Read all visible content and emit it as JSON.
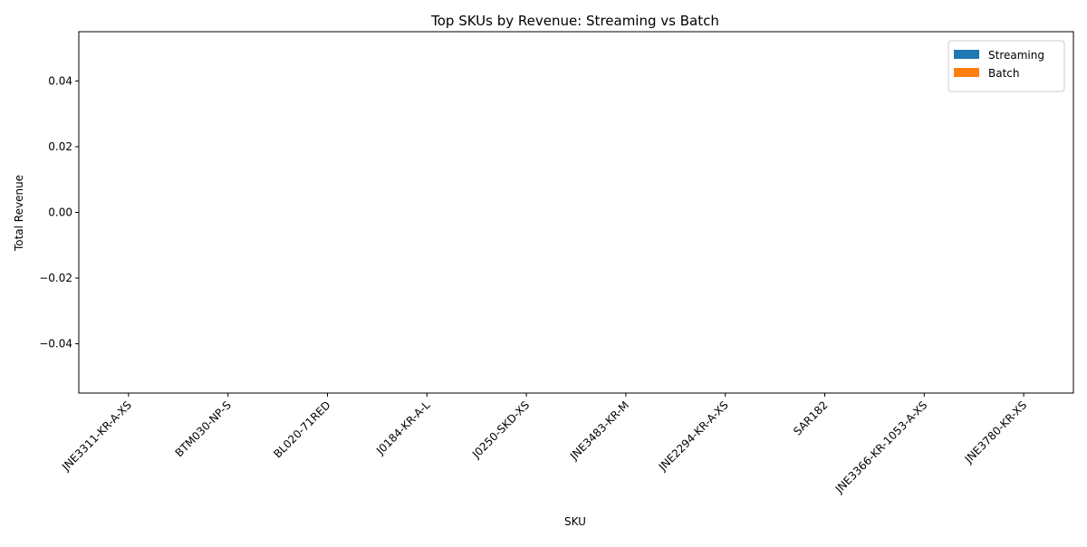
{
  "chart_data": {
    "type": "bar",
    "title": "Top SKUs by Revenue: Streaming vs Batch",
    "xlabel": "SKU",
    "ylabel": "Total Revenue",
    "categories": [
      "JNE3311-KR-A-XS",
      "BTM030-NP-S",
      "BL020-71RED",
      "J0184-KR-A-L",
      "J0250-SKD-XS",
      "JNE3483-KR-M",
      "JNE2294-KR-A-XS",
      "SAR182",
      "JNE3366-KR-1053-A-XS",
      "JNE3780-KR-XS"
    ],
    "series": [
      {
        "name": "Streaming",
        "color": "#1f77b4",
        "values": [
          0,
          0,
          0,
          0,
          0,
          0,
          0,
          0,
          0,
          0
        ]
      },
      {
        "name": "Batch",
        "color": "#ff7f0e",
        "values": [
          0,
          0,
          0,
          0,
          0,
          0,
          0,
          0,
          0,
          0
        ]
      }
    ],
    "ylim": [
      -0.055,
      0.055
    ],
    "yticks": [
      "−0.04",
      "−0.02",
      "0.00",
      "0.02",
      "0.04"
    ],
    "ytick_values": [
      -0.04,
      -0.02,
      0,
      0.02,
      0.04
    ],
    "grid": false,
    "legend_position": "upper-right"
  }
}
